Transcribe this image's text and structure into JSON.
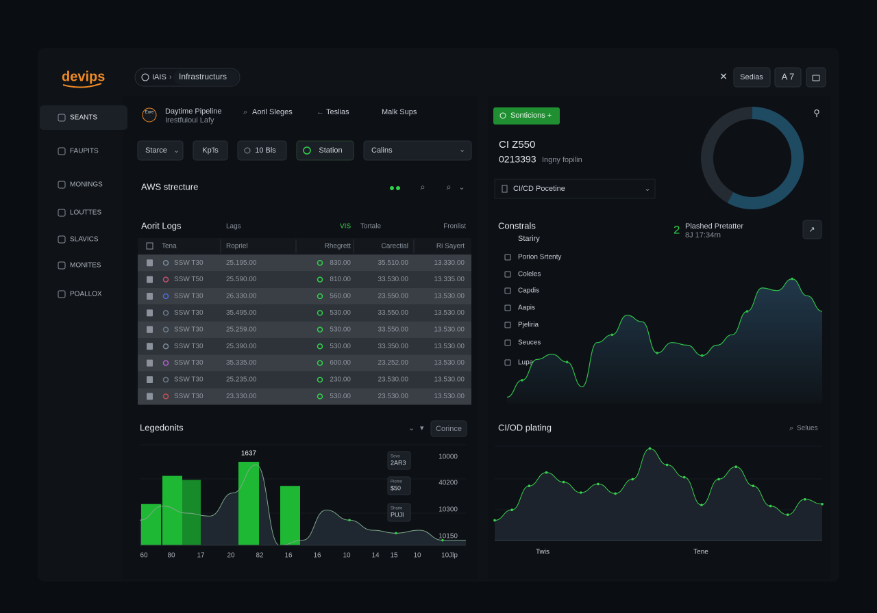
{
  "brand": "devips",
  "sidebar": [
    "SEANTS",
    "FAUPITS",
    "MONINGS",
    "LOUTTES",
    "SLAVICS",
    "MONITES",
    "POALLOX"
  ],
  "breadcrumb": [
    "IAIS",
    "Infrastructurs"
  ],
  "topbar": {
    "button": "Sedias",
    "badge": "A 7"
  },
  "pipeline": {
    "logo": "Eare",
    "title": "Daytime Pipeline",
    "subtitle": "Irestfuioui Lafy",
    "tabs": [
      "Aoril Sleges",
      "Teslias",
      "Malk Sups"
    ]
  },
  "filters": [
    "Starce",
    "Kp'ls",
    "10 Bls",
    "Station",
    "Calins"
  ],
  "section": "AWS strecture",
  "audit": {
    "title": "Aorit Logs",
    "headings": [
      "Lags",
      "VIS",
      "Tortale",
      "Fronlist"
    ],
    "columns": [
      "Tena",
      "Ropriel",
      "Rhegrett",
      "Carectial",
      "Ri Sayert"
    ],
    "rows": [
      [
        "SSW T30",
        "25.195.00",
        "830.00",
        "35.510.00",
        "13.330.00"
      ],
      [
        "SSW T50",
        "25.590.00",
        "810.00",
        "33.530.00",
        "13.335.00"
      ],
      [
        "SSW T30",
        "26.330.00",
        "560.00",
        "23.550.00",
        "13.530.00"
      ],
      [
        "SSW T30",
        "35.495.00",
        "530.00",
        "33.550.00",
        "13.530.00"
      ],
      [
        "SSW T30",
        "25.259.00",
        "530.00",
        "33.550.00",
        "13.530.00"
      ],
      [
        "SSW T30",
        "25.390.00",
        "530.00",
        "33.350.00",
        "13.530.00"
      ],
      [
        "SSW T30",
        "35.335.00",
        "600.00",
        "23.252.00",
        "13.530.00"
      ],
      [
        "SSW T30",
        "25.235.00",
        "230.00",
        "23.530.00",
        "13.530.00"
      ],
      [
        "SSW T30",
        "23.330.00",
        "530.00",
        "23.530.00",
        "13.530.00"
      ]
    ]
  },
  "summary": {
    "button": "Sonticions +",
    "code": "CI Z550",
    "number": "0213393",
    "caption": "Ingny fopilin",
    "dropdown": "CI/CD Pocetine"
  },
  "donut": {
    "type": "pie",
    "value": 58,
    "color": "#1e4a62"
  },
  "constrals": {
    "title": "Constrals",
    "subtitle": "Stariry",
    "items": [
      "Porion Srtenty",
      "Coleles",
      "Capdis",
      "Aapis",
      "Pjeliria",
      "Seuces",
      "Lupa"
    ],
    "count": "2",
    "status": "Plashed Pretatter",
    "time": "8J 17:34rn",
    "chart": {
      "type": "area",
      "color": "#2fbf4a",
      "ylim": [
        0,
        100
      ],
      "values": [
        5,
        18,
        34,
        38,
        32,
        13,
        47,
        53,
        68,
        63,
        39,
        47,
        45,
        37,
        45,
        53,
        71,
        89,
        87,
        96,
        83,
        71
      ]
    }
  },
  "legend_chart": {
    "type": "bar",
    "title": "Legedonits",
    "button": "Corince",
    "annotation": "1637",
    "color": "#1fb834",
    "ylim": [
      0,
      100
    ],
    "categories": [
      "60",
      "80",
      "17",
      "20",
      "82",
      "16",
      "16",
      "10",
      "14",
      "15",
      "10",
      "10Jlp"
    ],
    "bars": [
      41,
      69,
      65,
      83,
      59
    ],
    "line": [
      25,
      39,
      32,
      29,
      52,
      80,
      0,
      5,
      35,
      25,
      15,
      12,
      15,
      5,
      5
    ],
    "axis_labels": [
      "10000",
      "40200",
      "10300",
      "10150"
    ],
    "tooltips": [
      [
        "Sovo",
        "2AR3"
      ],
      [
        "Piomo",
        "$50"
      ],
      [
        "Sharie",
        "PUJI"
      ]
    ]
  },
  "cicd_chart": {
    "type": "line",
    "title": "CI/OD plating",
    "search": "Selues",
    "color": "#3bd04f",
    "ylim": [
      0,
      100
    ],
    "categories": [
      "Twis",
      "Tene"
    ],
    "values": [
      21,
      32,
      57,
      71,
      61,
      50,
      59,
      49,
      64,
      96,
      79,
      66,
      37,
      64,
      77,
      57,
      36,
      27,
      43,
      38
    ]
  }
}
